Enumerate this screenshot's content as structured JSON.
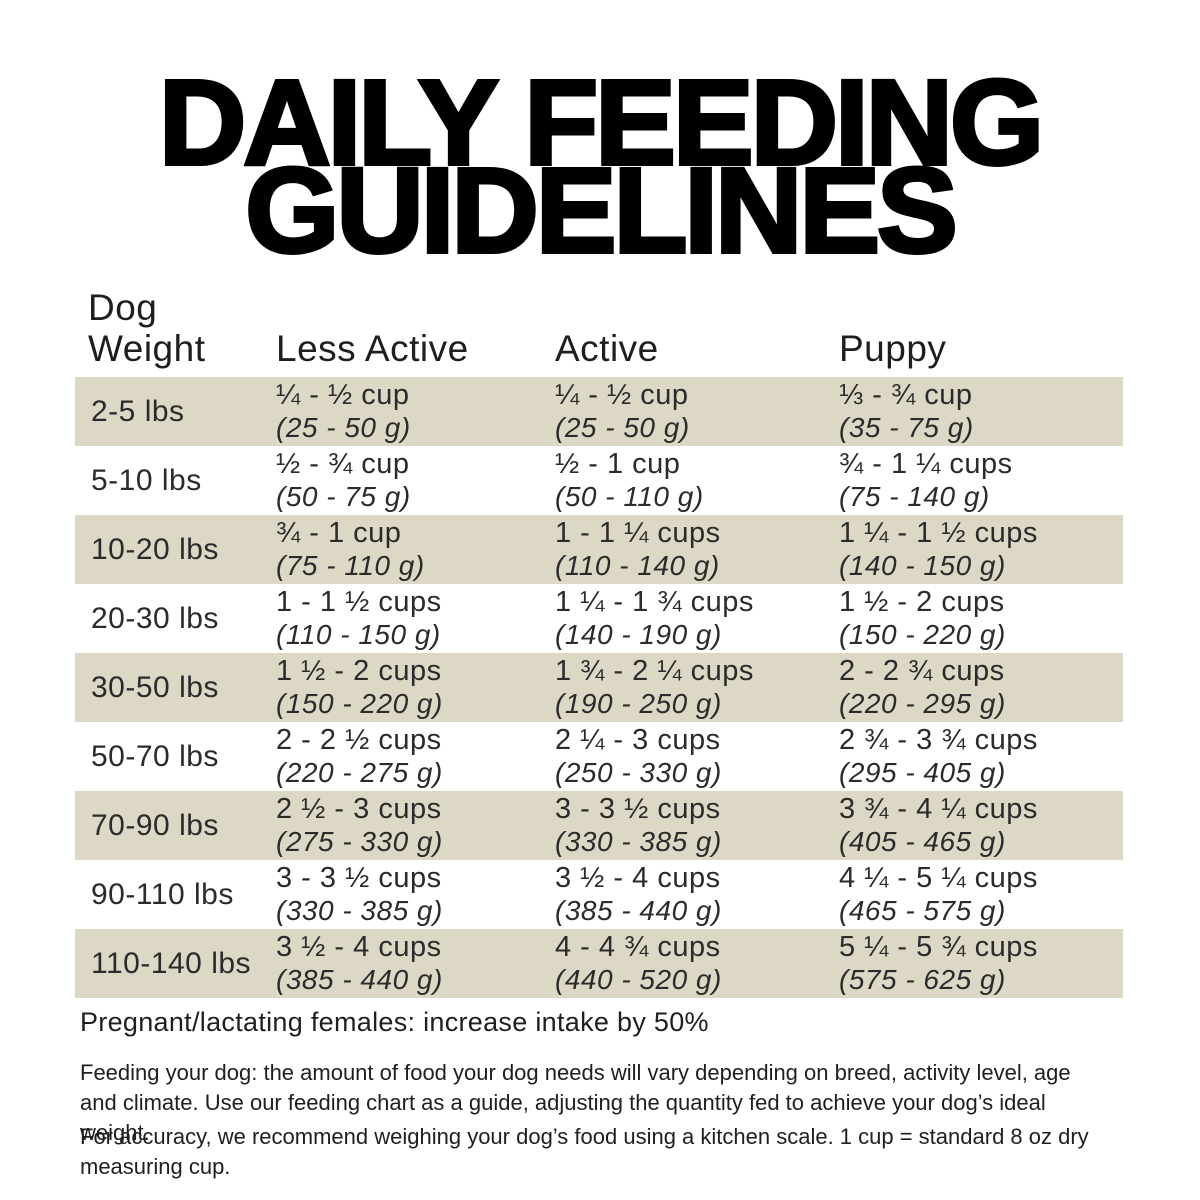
{
  "title": {
    "line1": "DAILY FEEDING",
    "line2": "GUIDELINES"
  },
  "table": {
    "header": {
      "weight_line1": "Dog",
      "weight_line2": "Weight",
      "less_active": "Less Active",
      "active": "Active",
      "puppy": "Puppy"
    },
    "rows": [
      {
        "weight": "2-5 lbs",
        "la_cups": "¼ - ½ cup",
        "la_g": "(25 - 50 g)",
        "a_cups": "¼ - ½ cup",
        "a_g": "(25 - 50 g)",
        "p_cups": "⅓ - ¾ cup",
        "p_g": "(35 - 75 g)"
      },
      {
        "weight": "5-10 lbs",
        "la_cups": "½ - ¾ cup",
        "la_g": "(50 - 75 g)",
        "a_cups": "½ - 1 cup",
        "a_g": "(50 - 110 g)",
        "p_cups": "¾ - 1 ¼ cups",
        "p_g": "(75 - 140 g)"
      },
      {
        "weight": "10-20 lbs",
        "la_cups": "¾ - 1 cup",
        "la_g": "(75 - 110 g)",
        "a_cups": "1 - 1 ¼ cups",
        "a_g": "(110 - 140 g)",
        "p_cups": "1 ¼ - 1 ½ cups",
        "p_g": "(140 - 150 g)"
      },
      {
        "weight": "20-30 lbs",
        "la_cups": "1 - 1 ½ cups",
        "la_g": "(110 - 150 g)",
        "a_cups": "1 ¼ - 1 ¾ cups",
        "a_g": "(140 - 190 g)",
        "p_cups": "1 ½ - 2 cups",
        "p_g": "(150 - 220 g)"
      },
      {
        "weight": "30-50 lbs",
        "la_cups": "1 ½ - 2 cups",
        "la_g": "(150 - 220 g)",
        "a_cups": "1 ¾ - 2 ¼ cups",
        "a_g": "(190 - 250 g)",
        "p_cups": "2 - 2 ¾ cups",
        "p_g": "(220 - 295 g)"
      },
      {
        "weight": "50-70 lbs",
        "la_cups": "2 - 2 ½ cups",
        "la_g": "(220 - 275 g)",
        "a_cups": "2 ¼ - 3 cups",
        "a_g": "(250 - 330 g)",
        "p_cups": "2 ¾ - 3 ¾ cups",
        "p_g": "(295 - 405 g)"
      },
      {
        "weight": "70-90 lbs",
        "la_cups": "2 ½ - 3 cups",
        "la_g": "(275 - 330 g)",
        "a_cups": "3 - 3 ½ cups",
        "a_g": "(330 - 385 g)",
        "p_cups": "3 ¾ - 4 ¼ cups",
        "p_g": "(405 - 465 g)"
      },
      {
        "weight": "90-110 lbs",
        "la_cups": "3 - 3 ½ cups",
        "la_g": "(330 - 385 g)",
        "a_cups": "3 ½ - 4 cups",
        "a_g": "(385 - 440 g)",
        "p_cups": "4 ¼ - 5 ¼ cups",
        "p_g": "(465 - 575 g)"
      },
      {
        "weight": "110-140 lbs",
        "la_cups": "3 ½ - 4 cups",
        "la_g": "(385 - 440 g)",
        "a_cups": "4 - 4 ¾ cups",
        "a_g": "(440 - 520 g)",
        "p_cups": "5 ¼ - 5 ¾ cups",
        "p_g": "(575 - 625 g)"
      }
    ]
  },
  "notes": {
    "pregnant": "Pregnant/lactating females: increase intake by 50%",
    "feeding": "Feeding your dog: the amount of food your dog needs will vary depending on breed, activity level, age and climate. Use our feeding chart as a guide, adjusting the quantity fed to achieve your dog’s ideal weight.",
    "accuracy": "For accuracy, we recommend weighing your dog’s food using a kitchen scale. 1 cup = standard 8 oz dry measuring cup."
  },
  "colors": {
    "row_stripe": "#ddd7c5",
    "table_text": "#2b2b2b",
    "title_text": "#000000",
    "background": "#ffffff"
  }
}
